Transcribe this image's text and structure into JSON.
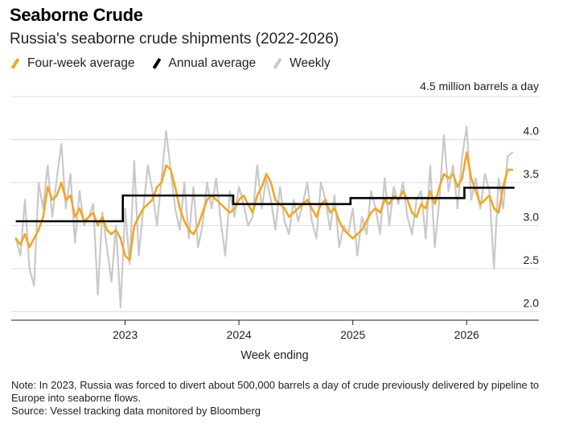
{
  "header": {
    "title": "Seaborne Crude",
    "subtitle": "Russia's seaborne crude shipments (2022-2026)"
  },
  "legend": {
    "items": [
      {
        "label": "Four-week average",
        "color": "#F5A623"
      },
      {
        "label": "Annual average",
        "color": "#000000"
      },
      {
        "label": "Weekly",
        "color": "#C9C9C9"
      }
    ]
  },
  "chart_data": {
    "type": "line",
    "unit_label": "4.5 million barrels a day",
    "xlabel": "Week ending",
    "ylabel": "",
    "ylim": [
      1.9,
      4.5
    ],
    "xlim": [
      2022.0,
      2026.62
    ],
    "x_ticks": [
      {
        "value": 2023,
        "label": "2023"
      },
      {
        "value": 2024,
        "label": "2024"
      },
      {
        "value": 2025,
        "label": "2025"
      },
      {
        "value": 2026,
        "label": "2026"
      }
    ],
    "y_ticks": [
      {
        "value": 2.0,
        "label": "2.0"
      },
      {
        "value": 2.5,
        "label": "2.5"
      },
      {
        "value": 3.0,
        "label": "3.0"
      },
      {
        "value": 3.5,
        "label": "3.5"
      },
      {
        "value": 4.0,
        "label": "4.0"
      }
    ],
    "grid": true,
    "legend_position": "top-left",
    "series": [
      {
        "name": "Weekly",
        "color": "#C9C9C9",
        "x": [
          2022.04,
          2022.08,
          2022.12,
          2022.16,
          2022.2,
          2022.24,
          2022.28,
          2022.32,
          2022.36,
          2022.4,
          2022.44,
          2022.48,
          2022.52,
          2022.56,
          2022.6,
          2022.64,
          2022.68,
          2022.72,
          2022.76,
          2022.8,
          2022.84,
          2022.88,
          2022.92,
          2022.96,
          2023.0,
          2023.04,
          2023.08,
          2023.12,
          2023.16,
          2023.2,
          2023.24,
          2023.28,
          2023.32,
          2023.36,
          2023.4,
          2023.44,
          2023.48,
          2023.52,
          2023.56,
          2023.6,
          2023.64,
          2023.68,
          2023.72,
          2023.76,
          2023.8,
          2023.84,
          2023.88,
          2023.92,
          2023.96,
          2024.0,
          2024.04,
          2024.08,
          2024.12,
          2024.16,
          2024.2,
          2024.24,
          2024.28,
          2024.32,
          2024.36,
          2024.4,
          2024.44,
          2024.48,
          2024.52,
          2024.56,
          2024.6,
          2024.64,
          2024.68,
          2024.72,
          2024.76,
          2024.8,
          2024.84,
          2024.88,
          2024.92,
          2024.96,
          2025.0,
          2025.04,
          2025.08,
          2025.12,
          2025.16,
          2025.2,
          2025.24,
          2025.28,
          2025.32,
          2025.36,
          2025.4,
          2025.44,
          2025.48,
          2025.52,
          2025.56,
          2025.6,
          2025.64,
          2025.68,
          2025.72,
          2025.76,
          2025.8,
          2025.84,
          2025.88,
          2025.92,
          2025.96,
          2026.0,
          2026.04,
          2026.08,
          2026.12,
          2026.16,
          2026.2,
          2026.24,
          2026.28,
          2026.32,
          2026.36,
          2026.4
        ],
        "values": [
          2.85,
          2.65,
          3.3,
          2.5,
          2.3,
          3.5,
          3.2,
          3.7,
          3.1,
          3.55,
          3.95,
          3.2,
          3.6,
          2.8,
          3.4,
          3.0,
          3.1,
          3.25,
          2.2,
          3.15,
          2.75,
          2.35,
          3.0,
          2.05,
          3.2,
          2.55,
          3.75,
          2.65,
          3.2,
          3.7,
          3.4,
          3.0,
          3.55,
          4.1,
          3.65,
          3.2,
          2.95,
          3.5,
          2.85,
          3.45,
          2.75,
          3.0,
          3.5,
          3.2,
          3.55,
          3.05,
          2.65,
          3.4,
          3.1,
          3.45,
          3.25,
          3.0,
          3.1,
          3.7,
          3.2,
          3.55,
          3.3,
          2.95,
          3.45,
          3.05,
          2.9,
          3.3,
          3.05,
          3.25,
          3.5,
          3.05,
          2.85,
          3.5,
          3.3,
          2.95,
          3.35,
          2.75,
          3.0,
          2.9,
          3.2,
          2.65,
          3.1,
          2.9,
          3.4,
          3.2,
          2.9,
          3.55,
          3.0,
          3.45,
          3.25,
          3.5,
          3.1,
          2.9,
          3.3,
          3.4,
          2.85,
          3.7,
          2.75,
          3.3,
          4.05,
          3.4,
          3.7,
          3.2,
          3.8,
          4.15,
          3.3,
          3.55,
          3.2,
          3.6,
          3.4,
          2.5,
          3.55,
          3.2,
          3.8,
          3.85
        ]
      },
      {
        "name": "Four-week average",
        "color": "#F5A623",
        "x": [
          2022.04,
          2022.08,
          2022.12,
          2022.16,
          2022.2,
          2022.24,
          2022.28,
          2022.32,
          2022.36,
          2022.4,
          2022.44,
          2022.48,
          2022.52,
          2022.56,
          2022.6,
          2022.64,
          2022.68,
          2022.72,
          2022.76,
          2022.8,
          2022.84,
          2022.88,
          2022.92,
          2022.96,
          2023.0,
          2023.04,
          2023.08,
          2023.12,
          2023.16,
          2023.2,
          2023.24,
          2023.28,
          2023.32,
          2023.36,
          2023.4,
          2023.44,
          2023.48,
          2023.52,
          2023.56,
          2023.6,
          2023.64,
          2023.68,
          2023.72,
          2023.76,
          2023.8,
          2023.84,
          2023.88,
          2023.92,
          2023.96,
          2024.0,
          2024.04,
          2024.08,
          2024.12,
          2024.16,
          2024.2,
          2024.24,
          2024.28,
          2024.32,
          2024.36,
          2024.4,
          2024.44,
          2024.48,
          2024.52,
          2024.56,
          2024.6,
          2024.64,
          2024.68,
          2024.72,
          2024.76,
          2024.8,
          2024.84,
          2024.88,
          2024.92,
          2024.96,
          2025.0,
          2025.04,
          2025.08,
          2025.12,
          2025.16,
          2025.2,
          2025.24,
          2025.28,
          2025.32,
          2025.36,
          2025.4,
          2025.44,
          2025.48,
          2025.52,
          2025.56,
          2025.6,
          2025.64,
          2025.68,
          2025.72,
          2025.76,
          2025.8,
          2025.84,
          2025.88,
          2025.92,
          2025.96,
          2026.0,
          2026.04,
          2026.08,
          2026.12,
          2026.16,
          2026.2,
          2026.24,
          2026.28,
          2026.32,
          2026.36,
          2026.4
        ],
        "values": [
          2.85,
          2.78,
          2.9,
          2.75,
          2.85,
          2.95,
          3.1,
          3.45,
          3.3,
          3.35,
          3.5,
          3.3,
          3.35,
          3.1,
          3.2,
          3.05,
          3.1,
          3.15,
          3.0,
          3.1,
          2.95,
          2.9,
          2.95,
          2.85,
          2.65,
          2.6,
          3.0,
          3.1,
          3.2,
          3.25,
          3.3,
          3.45,
          3.5,
          3.7,
          3.65,
          3.45,
          3.2,
          3.05,
          2.95,
          2.9,
          3.0,
          3.15,
          3.3,
          3.35,
          3.3,
          3.25,
          3.2,
          3.15,
          3.2,
          3.3,
          3.35,
          3.25,
          3.15,
          3.35,
          3.45,
          3.6,
          3.5,
          3.3,
          3.25,
          3.2,
          3.1,
          3.15,
          3.2,
          3.25,
          3.3,
          3.2,
          3.1,
          3.25,
          3.3,
          3.15,
          3.2,
          3.05,
          2.95,
          2.9,
          2.85,
          2.9,
          2.95,
          3.05,
          3.15,
          3.2,
          3.15,
          3.3,
          3.25,
          3.35,
          3.3,
          3.4,
          3.3,
          3.15,
          3.1,
          3.25,
          3.2,
          3.4,
          3.25,
          3.45,
          3.6,
          3.55,
          3.6,
          3.45,
          3.55,
          3.85,
          3.55,
          3.4,
          3.25,
          3.3,
          3.35,
          3.2,
          3.15,
          3.45,
          3.65,
          3.65
        ]
      },
      {
        "name": "Annual average",
        "color": "#000000",
        "type": "step",
        "segments": [
          {
            "start": 2022.04,
            "end": 2022.98,
            "value": 3.05
          },
          {
            "start": 2022.98,
            "end": 2023.95,
            "value": 3.35
          },
          {
            "start": 2023.95,
            "end": 2024.98,
            "value": 3.25
          },
          {
            "start": 2024.98,
            "end": 2025.98,
            "value": 3.32
          },
          {
            "start": 2025.98,
            "end": 2026.42,
            "value": 3.44
          }
        ]
      }
    ]
  },
  "footer": {
    "note": "Note: In 2023, Russia was forced to divert about 500,000 barrels a day of crude previously delivered by pipeline to Europe into seaborne flows.",
    "source": "Source: Vessel tracking data monitored by Bloomberg"
  }
}
